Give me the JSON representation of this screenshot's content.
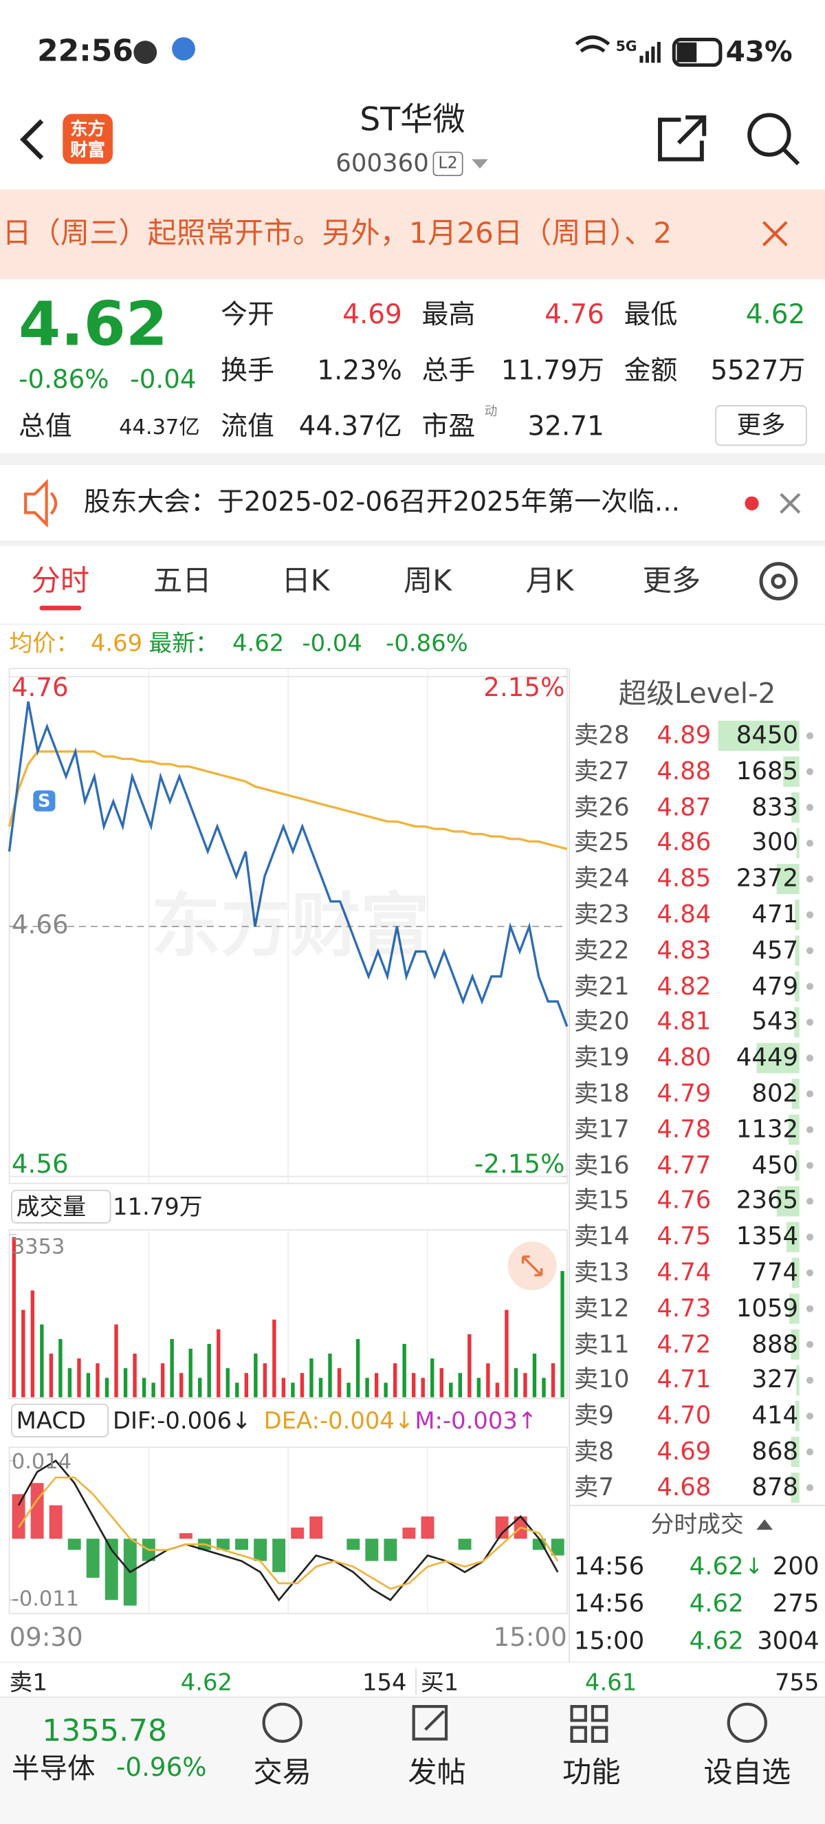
{
  "status_bar": {
    "time": "22:56",
    "network": "5G",
    "battery": "43%"
  },
  "header": {
    "logo": "东方财富",
    "title": "ST华微",
    "code": "600360",
    "level": "L2"
  },
  "notice": {
    "text": "日（周三）起照常开市。另外，1月26日（周日）、2"
  },
  "quote": {
    "price": "4.62",
    "change_pct": "-0.86%",
    "change": "-0.04",
    "fields": [
      {
        "label": "今开",
        "value": "4.69"
      },
      {
        "label": "最高",
        "value": "4.76"
      },
      {
        "label": "最低",
        "value": "4.62"
      },
      {
        "label": "换手",
        "value": "1.23%"
      },
      {
        "label": "总手",
        "value": "11.79万"
      },
      {
        "label": "金额",
        "value": "5527万"
      },
      {
        "label": "总值",
        "value": "44.37亿"
      },
      {
        "label": "流值",
        "value": "44.37亿"
      },
      {
        "label": "市盈",
        "note": "动",
        "value": "32.71"
      }
    ],
    "more": "更多"
  },
  "announcement": {
    "text": "股东大会：于2025-02-06召开2025年第一次临..."
  },
  "tabs": [
    "分时",
    "五日",
    "日K",
    "周K",
    "月K",
    "更多"
  ],
  "summary": {
    "avg_label": "均价：",
    "avg": "4.69",
    "last_label": "最新：",
    "last": "4.62",
    "change": "-0.04",
    "change_pct": "-0.86%"
  },
  "chart_data": [
    {
      "type": "line",
      "watermark": "东方财富",
      "marker": "S",
      "ylim": [
        4.56,
        4.76
      ],
      "yticks": [
        4.76,
        4.66,
        4.56
      ],
      "y2lim": [
        -2.15,
        2.15
      ],
      "y2ticks": [
        {
          "value": 2.15,
          "label": "2.15%"
        },
        {
          "value": -2.15,
          "label": "-2.15%"
        }
      ],
      "x_labels": [
        "09:30",
        "15:00"
      ],
      "series": [
        {
          "color": "#2f6db5",
          "values": [
            4.69,
            4.72,
            4.75,
            4.73,
            4.74,
            4.73,
            4.72,
            4.73,
            4.71,
            4.72,
            4.7,
            4.71,
            4.7,
            4.72,
            4.71,
            4.7,
            4.72,
            4.71,
            4.72,
            4.71,
            4.7,
            4.69,
            4.7,
            4.69,
            4.68,
            4.69,
            4.66,
            4.68,
            4.69,
            4.7,
            4.69,
            4.7,
            4.69,
            4.68,
            4.67,
            4.67,
            4.66,
            4.65,
            4.64,
            4.65,
            4.64,
            4.66,
            4.64,
            4.65,
            4.65,
            4.64,
            4.65,
            4.64,
            4.63,
            4.64,
            4.63,
            4.64,
            4.64,
            4.66,
            4.65,
            4.66,
            4.64,
            4.63,
            4.63,
            4.62
          ]
        },
        {
          "color": "#f0b43c",
          "values": [
            4.7,
            4.715,
            4.725,
            4.73,
            4.73,
            4.73,
            4.73,
            4.73,
            4.73,
            4.73,
            4.728,
            4.728,
            4.727,
            4.727,
            4.726,
            4.726,
            4.725,
            4.725,
            4.724,
            4.724,
            4.723,
            4.722,
            4.721,
            4.72,
            4.719,
            4.718,
            4.716,
            4.715,
            4.714,
            4.713,
            4.712,
            4.711,
            4.71,
            4.709,
            4.708,
            4.707,
            4.706,
            4.705,
            4.704,
            4.703,
            4.702,
            4.702,
            4.701,
            4.7,
            4.7,
            4.699,
            4.699,
            4.698,
            4.698,
            4.697,
            4.697,
            4.696,
            4.696,
            4.695,
            4.695,
            4.694,
            4.694,
            4.693,
            4.692,
            4.691
          ]
        }
      ]
    },
    {
      "type": "bar",
      "selector": "成交量",
      "total": "11.79万",
      "ylim": [
        0,
        3353
      ],
      "yticks": [
        3353
      ],
      "up_color": "#e8343c",
      "down_color": "#1a9b36",
      "values": [
        3300,
        1800,
        2200,
        1500,
        900,
        1200,
        600,
        800,
        500,
        700,
        400,
        1500,
        600,
        900,
        400,
        300,
        700,
        1200,
        500,
        1000,
        400,
        1100,
        1400,
        600,
        300,
        500,
        900,
        700,
        1600,
        400,
        300,
        500,
        800,
        400,
        900,
        600,
        300,
        1200,
        400,
        500,
        300,
        700,
        1100,
        500,
        400,
        800,
        600,
        300,
        500,
        1300,
        400,
        700,
        300,
        1800,
        600,
        500,
        900,
        400,
        700,
        2600
      ]
    },
    {
      "type": "macd",
      "selector": "MACD",
      "labels": {
        "dif": "DIF:-0.006↓",
        "dea": "DEA:-0.004↓",
        "m": "M:-0.003↑"
      },
      "ylim": [
        -0.013,
        0.016
      ],
      "yticks": [
        0.014,
        -0.011
      ],
      "series": [
        {
          "color": "#222222",
          "values": [
            0.006,
            0.012,
            0.014,
            0.01,
            0.004,
            -0.002,
            -0.006,
            -0.004,
            -0.002,
            -0.001,
            -0.002,
            -0.003,
            -0.004,
            -0.006,
            -0.011,
            -0.007,
            -0.003,
            -0.004,
            -0.006,
            -0.009,
            -0.011,
            -0.007,
            -0.003,
            -0.004,
            -0.006,
            -0.004,
            0.001,
            0.004,
            0.0,
            -0.006
          ]
        },
        {
          "color": "#f0b43c",
          "values": [
            0.002,
            0.007,
            0.011,
            0.011,
            0.008,
            0.004,
            0.0,
            -0.002,
            -0.002,
            -0.001,
            -0.001,
            -0.002,
            -0.003,
            -0.004,
            -0.008,
            -0.008,
            -0.005,
            -0.004,
            -0.005,
            -0.007,
            -0.009,
            -0.008,
            -0.005,
            -0.004,
            -0.005,
            -0.004,
            -0.001,
            0.002,
            0.001,
            -0.004
          ]
        }
      ],
      "bars": {
        "up_color": "#e8343c",
        "down_color": "#1a9b36",
        "values": [
          0.008,
          0.01,
          0.006,
          -0.002,
          -0.007,
          -0.011,
          -0.012,
          -0.004,
          0.0,
          0.001,
          -0.002,
          -0.002,
          -0.002,
          -0.004,
          -0.006,
          0.002,
          0.004,
          0.0,
          -0.002,
          -0.004,
          -0.004,
          0.002,
          0.004,
          0.0,
          -0.002,
          0.0,
          0.004,
          0.004,
          -0.002,
          -0.003
        ]
      }
    }
  ],
  "order_book": {
    "title": "超级Level-2",
    "rows": [
      {
        "label": "卖28",
        "price": "4.89",
        "volume": 8450
      },
      {
        "label": "卖27",
        "price": "4.88",
        "volume": 1685
      },
      {
        "label": "卖26",
        "price": "4.87",
        "volume": 833
      },
      {
        "label": "卖25",
        "price": "4.86",
        "volume": 300
      },
      {
        "label": "卖24",
        "price": "4.85",
        "volume": 2372
      },
      {
        "label": "卖23",
        "price": "4.84",
        "volume": 471
      },
      {
        "label": "卖22",
        "price": "4.83",
        "volume": 457
      },
      {
        "label": "卖21",
        "price": "4.82",
        "volume": 479
      },
      {
        "label": "卖20",
        "price": "4.81",
        "volume": 543
      },
      {
        "label": "卖19",
        "price": "4.80",
        "volume": 4449
      },
      {
        "label": "卖18",
        "price": "4.79",
        "volume": 802
      },
      {
        "label": "卖17",
        "price": "4.78",
        "volume": 1132
      },
      {
        "label": "卖16",
        "price": "4.77",
        "volume": 450
      },
      {
        "label": "卖15",
        "price": "4.76",
        "volume": 2365
      },
      {
        "label": "卖14",
        "price": "4.75",
        "volume": 1354
      },
      {
        "label": "卖13",
        "price": "4.74",
        "volume": 774
      },
      {
        "label": "卖12",
        "price": "4.73",
        "volume": 1059
      },
      {
        "label": "卖11",
        "price": "4.72",
        "volume": 888
      },
      {
        "label": "卖10",
        "price": "4.71",
        "volume": 327
      },
      {
        "label": "卖9",
        "price": "4.70",
        "volume": 414
      },
      {
        "label": "卖8",
        "price": "4.69",
        "volume": 868
      },
      {
        "label": "卖7",
        "price": "4.68",
        "volume": 878
      }
    ]
  },
  "trades": {
    "title": "分时成交",
    "rows": [
      {
        "time": "14:56",
        "price": "4.62",
        "direction": "↓",
        "volume": "200"
      },
      {
        "time": "14:56",
        "price": "4.62",
        "volume": "275"
      },
      {
        "time": "15:00",
        "price": "4.62",
        "volume": "3004"
      }
    ]
  },
  "best_quotes": [
    {
      "label": "卖1",
      "price": "4.62",
      "volume": "154"
    },
    {
      "label": "买1",
      "price": "4.61",
      "volume": "755"
    }
  ],
  "bottom_bar": {
    "index_value": "1355.78",
    "sector": "半导体",
    "sector_change": "-0.96%",
    "items": [
      "交易",
      "发帖",
      "功能",
      "设自选"
    ]
  }
}
